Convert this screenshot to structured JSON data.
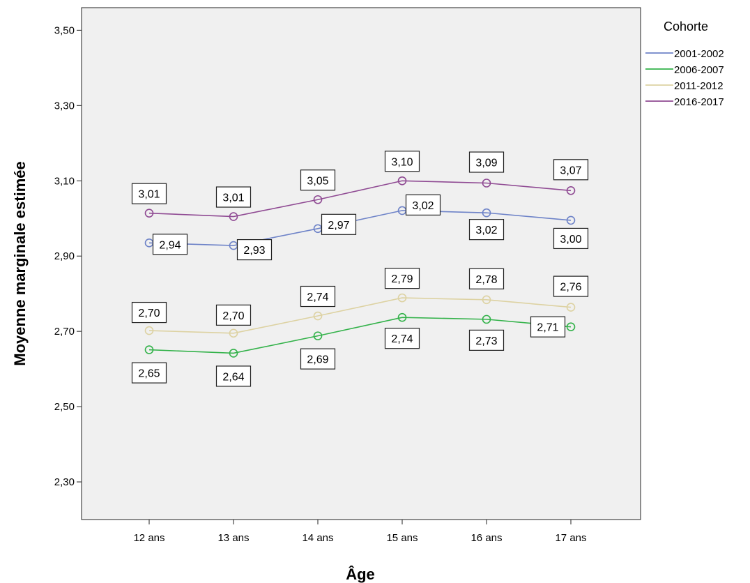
{
  "chart_data": {
    "type": "line",
    "title": "",
    "xlabel": "Âge",
    "ylabel": "Moyenne marginale estimée",
    "categories": [
      "12 ans",
      "13 ans",
      "14 ans",
      "15 ans",
      "16 ans",
      "17 ans"
    ],
    "ylim": [
      2.2,
      3.56
    ],
    "yticks": [
      2.3,
      2.5,
      2.7,
      2.9,
      3.1,
      3.3,
      3.5
    ],
    "ytick_labels": [
      "2,30",
      "2,50",
      "2,70",
      "2,90",
      "3,10",
      "3,30",
      "3,50"
    ],
    "grid": false,
    "legend": {
      "title": "Cohorte",
      "placement": "top-right-outside"
    },
    "series": [
      {
        "name": "2001-2002",
        "color": "#6e83c8",
        "values": [
          2.935,
          2.928,
          2.973,
          3.021,
          3.015,
          2.995
        ],
        "labels": [
          "2,94",
          "2,93",
          "2,97",
          "3,02",
          "3,02",
          "3,00"
        ]
      },
      {
        "name": "2006-2007",
        "color": "#33b24a",
        "values": [
          2.651,
          2.642,
          2.688,
          2.737,
          2.732,
          2.712
        ],
        "labels": [
          "2,65",
          "2,64",
          "2,69",
          "2,74",
          "2,73",
          "2,71"
        ]
      },
      {
        "name": "2011-2012",
        "color": "#ddd2a2",
        "values": [
          2.702,
          2.695,
          2.741,
          2.789,
          2.784,
          2.764
        ],
        "labels": [
          "2,70",
          "2,70",
          "2,74",
          "2,79",
          "2,78",
          "2,76"
        ]
      },
      {
        "name": "2016-2017",
        "color": "#8f4a93",
        "values": [
          3.014,
          3.005,
          3.05,
          3.1,
          3.094,
          3.074
        ],
        "labels": [
          "3,01",
          "3,01",
          "3,05",
          "3,10",
          "3,09",
          "3,07"
        ]
      }
    ]
  }
}
